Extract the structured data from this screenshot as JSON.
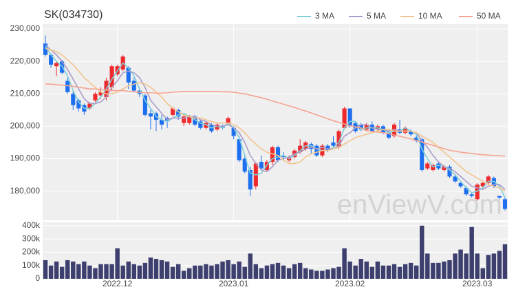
{
  "chart_data": [
    {
      "type": "candlestick",
      "title": "SK(034730)",
      "open": [
        225500,
        222000,
        218500,
        220000,
        214000,
        210000,
        208000,
        206500,
        205500,
        208000,
        209500,
        209000,
        212000,
        216000,
        217500,
        218000,
        214000,
        211000,
        209500,
        204000,
        204000,
        202000,
        202500,
        203500,
        205000,
        201000,
        201000,
        203000,
        201500,
        199500,
        200500,
        199000,
        200000,
        201000,
        199500,
        196000,
        190000,
        186500,
        181500,
        189000,
        186500,
        189000,
        193500,
        191000,
        189500,
        190500,
        192000,
        193000,
        194500,
        194000,
        191000,
        194000,
        195000,
        193500,
        199500,
        205500,
        201000,
        200500,
        199000,
        200500,
        199000,
        200000,
        198000,
        197000,
        199000,
        198000,
        198500,
        196500,
        196000,
        187000,
        186500,
        188500,
        186500,
        187500,
        184500,
        182500,
        181000,
        179000,
        177500,
        181500,
        182500,
        184000,
        178500,
        177500
      ],
      "high": [
        228000,
        222500,
        220000,
        220500,
        215000,
        211000,
        208500,
        207000,
        207500,
        210500,
        212000,
        215000,
        219000,
        219000,
        222000,
        218500,
        215000,
        212000,
        210000,
        205000,
        204500,
        203500,
        203000,
        206000,
        205500,
        203500,
        203500,
        203500,
        202000,
        201500,
        201000,
        201000,
        200500,
        203000,
        200000,
        197000,
        191000,
        187500,
        189000,
        191000,
        189500,
        194000,
        194000,
        192000,
        191000,
        193000,
        196000,
        195500,
        195000,
        194500,
        194500,
        194500,
        197000,
        199000,
        206000,
        205500,
        201500,
        201000,
        201000,
        201500,
        200500,
        200500,
        198500,
        201000,
        202000,
        200000,
        199000,
        197000,
        196500,
        189000,
        188500,
        189000,
        188000,
        188000,
        185000,
        183000,
        181500,
        179500,
        182500,
        183000,
        185000,
        184500,
        178500,
        178000
      ],
      "low": [
        221500,
        218000,
        215500,
        216000,
        210000,
        205000,
        204500,
        203500,
        205000,
        207500,
        208500,
        208000,
        211000,
        215500,
        217000,
        211500,
        210500,
        209000,
        203000,
        199000,
        198500,
        199000,
        199500,
        203000,
        202000,
        200000,
        200500,
        200000,
        199000,
        199000,
        198000,
        198500,
        199000,
        200500,
        196000,
        189000,
        185500,
        178500,
        180500,
        186500,
        186000,
        188000,
        189000,
        189500,
        189000,
        190000,
        191500,
        192500,
        191500,
        190500,
        190500,
        192000,
        193500,
        193000,
        199000,
        199500,
        198000,
        198500,
        198500,
        198000,
        198500,
        197500,
        196000,
        196500,
        197500,
        197500,
        197000,
        195000,
        186000,
        186500,
        186000,
        186500,
        186000,
        184000,
        182500,
        181000,
        178500,
        178000,
        177000,
        181000,
        182000,
        181000,
        177500,
        174000
      ],
      "close": [
        222000,
        219000,
        219500,
        216500,
        210500,
        206500,
        205500,
        204500,
        207000,
        210000,
        210500,
        214000,
        218500,
        218500,
        221500,
        213500,
        211000,
        210000,
        203500,
        203000,
        202000,
        200500,
        201500,
        205500,
        203000,
        203000,
        203000,
        200500,
        199500,
        201000,
        198500,
        200500,
        199500,
        202500,
        197000,
        189500,
        186000,
        180500,
        188500,
        187000,
        189000,
        193500,
        189500,
        190500,
        190500,
        192500,
        194000,
        195000,
        193000,
        191000,
        194000,
        192500,
        194000,
        198500,
        205500,
        200000,
        198500,
        199000,
        200500,
        198500,
        200000,
        198000,
        196500,
        200500,
        198000,
        199500,
        197500,
        195500,
        186500,
        188500,
        188000,
        187000,
        187500,
        184500,
        183000,
        181500,
        179000,
        178500,
        182000,
        182500,
        184500,
        181500,
        178000,
        174500
      ],
      "up_color": "#ee2a2e",
      "down_color": "#1e6ff0",
      "series": [
        {
          "name": "3 MA",
          "color": "#7fcfd6",
          "values": [
            224500,
            222000,
            220000,
            218500,
            215500,
            211000,
            207500,
            205500,
            205500,
            207000,
            209000,
            211500,
            214500,
            217000,
            219500,
            218000,
            215500,
            211500,
            208000,
            205500,
            203000,
            202000,
            201500,
            202500,
            203500,
            204000,
            203000,
            202000,
            201000,
            200500,
            199500,
            200000,
            199500,
            201000,
            199500,
            196500,
            191000,
            185500,
            185000,
            185500,
            188000,
            190000,
            190500,
            191000,
            190000,
            191000,
            192500,
            194000,
            194000,
            193000,
            192500,
            192500,
            193500,
            195000,
            199500,
            201500,
            201500,
            199000,
            199500,
            199500,
            199500,
            199000,
            198000,
            198500,
            198500,
            199500,
            198500,
            197500,
            193000,
            190000,
            187500,
            188000,
            187500,
            186500,
            185000,
            183000,
            181000,
            179500,
            180000,
            181000,
            183000,
            183000,
            181500,
            178000
          ]
        },
        {
          "name": "5 MA",
          "color": "#aa9cc8",
          "values": [
            225000,
            223500,
            222000,
            220000,
            217500,
            214500,
            211500,
            208500,
            207000,
            207000,
            207500,
            209000,
            212000,
            214000,
            216500,
            217000,
            216500,
            215000,
            212000,
            208000,
            206000,
            204000,
            202000,
            202500,
            202500,
            202500,
            203000,
            203000,
            202000,
            201500,
            200500,
            200000,
            200000,
            200500,
            199500,
            198000,
            195000,
            191000,
            188500,
            186500,
            186000,
            187500,
            189500,
            190000,
            190500,
            191500,
            192000,
            193000,
            193500,
            193000,
            193500,
            193000,
            193000,
            194000,
            197000,
            198000,
            199500,
            200500,
            200500,
            199500,
            199000,
            199000,
            198500,
            199000,
            198500,
            198500,
            198500,
            198000,
            195500,
            193500,
            191000,
            189000,
            187500,
            187000,
            186000,
            184500,
            183000,
            181500,
            181000,
            180500,
            181500,
            182000,
            182000,
            180500
          ]
        },
        {
          "name": "10 MA",
          "color": "#f2c48e",
          "values": [
            224000,
            223500,
            223000,
            222000,
            220500,
            219000,
            217000,
            215000,
            213500,
            212000,
            210500,
            210000,
            210000,
            210500,
            211500,
            212500,
            213000,
            213500,
            213000,
            212000,
            210500,
            209000,
            207000,
            205500,
            204500,
            203500,
            203000,
            202500,
            202500,
            202000,
            201500,
            201000,
            201000,
            201000,
            200500,
            199500,
            198000,
            196000,
            194500,
            193000,
            192000,
            191500,
            191000,
            189500,
            188500,
            188500,
            189000,
            190500,
            191500,
            192000,
            192500,
            192500,
            193000,
            193500,
            194500,
            195500,
            196500,
            197000,
            197500,
            198000,
            198500,
            199000,
            199000,
            198500,
            198500,
            198500,
            198500,
            198000,
            197000,
            196000,
            195000,
            193500,
            192000,
            190500,
            189000,
            187500,
            186000,
            185000,
            184000,
            183000,
            182000,
            181500,
            181000,
            180000
          ]
        },
        {
          "name": "50 MA",
          "color": "#f5a390",
          "values": [
            213000,
            213000,
            212800,
            212700,
            212500,
            212300,
            212000,
            211800,
            211500,
            211500,
            211300,
            211200,
            211000,
            211000,
            211000,
            210800,
            210600,
            210500,
            210300,
            210300,
            210200,
            210200,
            210300,
            210500,
            210600,
            210700,
            210700,
            210700,
            210700,
            210700,
            210700,
            210700,
            210600,
            210600,
            210500,
            210200,
            210000,
            209600,
            209200,
            208800,
            208300,
            207800,
            207300,
            206800,
            206300,
            205800,
            205200,
            204700,
            204100,
            203500,
            202900,
            202300,
            201700,
            201200,
            200700,
            200200,
            199800,
            199500,
            198600,
            198400,
            198200,
            198000,
            197700,
            197300,
            196900,
            196500,
            196100,
            195600,
            195100,
            194600,
            194100,
            193600,
            193100,
            192600,
            192300,
            192000,
            191800,
            191600,
            191400,
            191200,
            191100,
            191000,
            190900,
            190800
          ]
        }
      ],
      "ylim": [
        171000,
        231500
      ],
      "yticks": [
        {
          "value": 180000,
          "label": "180,000"
        },
        {
          "value": 190000,
          "label": "190,000"
        },
        {
          "value": 200000,
          "label": "200,000"
        },
        {
          "value": 210000,
          "label": "210,000"
        },
        {
          "value": 220000,
          "label": "220,000"
        },
        {
          "value": 230000,
          "label": "230,000"
        }
      ],
      "grid": true,
      "legend": "top-right",
      "watermark": "enViewV.com"
    },
    {
      "type": "bar",
      "color": "#3d3f6e",
      "categories": [
        null,
        null,
        null,
        null,
        null,
        null,
        null,
        null,
        null,
        null,
        null,
        null,
        null,
        "2022.12",
        null,
        null,
        null,
        null,
        null,
        null,
        null,
        null,
        null,
        null,
        null,
        null,
        null,
        null,
        null,
        null,
        null,
        null,
        null,
        null,
        "2023.01",
        null,
        null,
        null,
        null,
        null,
        null,
        null,
        null,
        null,
        null,
        null,
        null,
        null,
        null,
        null,
        null,
        null,
        null,
        null,
        null,
        "2023.02",
        null,
        null,
        null,
        null,
        null,
        null,
        null,
        null,
        null,
        null,
        null,
        null,
        null,
        null,
        null,
        null,
        null,
        null,
        null,
        null,
        null,
        null,
        "2023.03",
        null,
        null,
        null,
        null,
        null
      ],
      "values": [
        140000,
        100000,
        130000,
        90000,
        140000,
        130000,
        110000,
        130000,
        100000,
        80000,
        110000,
        110000,
        110000,
        230000,
        100000,
        130000,
        110000,
        100000,
        120000,
        160000,
        150000,
        140000,
        130000,
        90000,
        110000,
        60000,
        80000,
        100000,
        100000,
        110000,
        100000,
        110000,
        130000,
        140000,
        110000,
        130000,
        90000,
        190000,
        110000,
        80000,
        100000,
        110000,
        120000,
        100000,
        80000,
        110000,
        120000,
        80000,
        70000,
        60000,
        60000,
        70000,
        80000,
        90000,
        230000,
        130000,
        100000,
        150000,
        130000,
        90000,
        130000,
        100000,
        100000,
        110000,
        90000,
        110000,
        120000,
        100000,
        400000,
        190000,
        120000,
        120000,
        130000,
        140000,
        190000,
        220000,
        190000,
        390000,
        190000,
        80000,
        180000,
        190000,
        210000,
        260000
      ],
      "ylim": [
        0,
        425000
      ],
      "yticks": [
        0,
        {
          "value": 100000,
          "label": "100k"
        },
        {
          "value": 200000,
          "label": "200k"
        },
        {
          "value": 300000,
          "label": "300k"
        },
        {
          "value": 400000,
          "label": "400k"
        }
      ],
      "grid": true
    }
  ]
}
